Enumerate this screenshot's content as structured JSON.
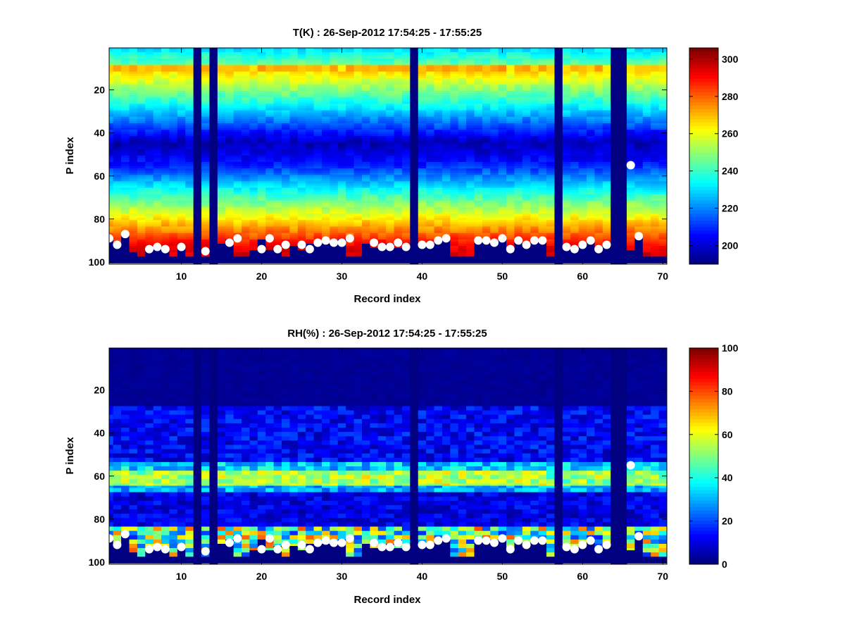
{
  "chart_data": [
    {
      "type": "heatmap",
      "title": "T(K) : 26-Sep-2012 17:54:25 - 17:55:25",
      "xlabel": "Record index",
      "ylabel": "P index",
      "xlim": [
        1,
        70.5
      ],
      "ylim": [
        0.5,
        101
      ],
      "y_reversed": true,
      "xticks": [
        10,
        20,
        30,
        40,
        50,
        60,
        70
      ],
      "yticks": [
        20,
        40,
        60,
        80,
        100
      ],
      "colorbar": {
        "min": 190,
        "max": 306,
        "ticks": [
          200,
          220,
          240,
          260,
          280,
          300
        ],
        "colormap": "jet"
      },
      "missing_records": [
        12,
        14,
        39,
        57,
        64,
        65
      ],
      "surface_pressure_index": [
        89,
        92,
        87,
        95,
        97,
        94,
        93,
        94,
        97,
        93,
        97,
        95,
        97,
        97,
        91,
        89,
        97,
        97,
        94,
        89,
        94,
        92,
        97,
        92,
        94,
        91,
        90,
        91,
        91,
        89,
        97,
        97,
        91,
        93,
        93,
        91,
        93,
        92,
        97,
        92,
        92,
        90,
        89,
        97,
        97,
        97,
        90,
        90,
        91,
        89,
        94,
        90,
        92,
        90,
        90,
        97,
        97,
        93,
        94,
        92,
        90,
        94,
        92,
        97,
        97,
        94,
        88,
        97,
        97,
        97
      ],
      "profile_description": "Warm near-surface layer (~290-300 K) decreasing with height to a cold minimum (~195-205 K) near P index 40-50, then warming again to ~270 K near P index 8-10.",
      "markers": [
        [
          1,
          89
        ],
        [
          2,
          92
        ],
        [
          3,
          87
        ],
        [
          6,
          94
        ],
        [
          7,
          93
        ],
        [
          8,
          94
        ],
        [
          10,
          93
        ],
        [
          13,
          95
        ],
        [
          16,
          91
        ],
        [
          17,
          89
        ],
        [
          20,
          94
        ],
        [
          21,
          89
        ],
        [
          22,
          94
        ],
        [
          23,
          92
        ],
        [
          25,
          92
        ],
        [
          26,
          94
        ],
        [
          27,
          91
        ],
        [
          28,
          90
        ],
        [
          29,
          91
        ],
        [
          30,
          91
        ],
        [
          31,
          89
        ],
        [
          34,
          91
        ],
        [
          35,
          93
        ],
        [
          36,
          93
        ],
        [
          37,
          91
        ],
        [
          38,
          93
        ],
        [
          40,
          92
        ],
        [
          41,
          92
        ],
        [
          42,
          90
        ],
        [
          43,
          89
        ],
        [
          47,
          90
        ],
        [
          48,
          90
        ],
        [
          49,
          91
        ],
        [
          50,
          89
        ],
        [
          51,
          94
        ],
        [
          52,
          90
        ],
        [
          53,
          92
        ],
        [
          54,
          90
        ],
        [
          55,
          90
        ],
        [
          58,
          93
        ],
        [
          59,
          94
        ],
        [
          60,
          92
        ],
        [
          61,
          90
        ],
        [
          62,
          94
        ],
        [
          63,
          92
        ],
        [
          66,
          55
        ],
        [
          67,
          88
        ]
      ]
    },
    {
      "type": "heatmap",
      "title": "RH(%) : 26-Sep-2012 17:54:25 - 17:55:25",
      "xlabel": "Record index",
      "ylabel": "P index",
      "xlim": [
        1,
        70.5
      ],
      "ylim": [
        0.5,
        101
      ],
      "y_reversed": true,
      "xticks": [
        10,
        20,
        30,
        40,
        50,
        60,
        70
      ],
      "yticks": [
        20,
        40,
        60,
        80,
        100
      ],
      "colorbar": {
        "min": 0,
        "max": 100,
        "ticks": [
          0,
          20,
          40,
          60,
          80,
          100
        ],
        "colormap": "jet"
      },
      "missing_records": [
        12,
        14,
        39,
        57,
        64,
        65
      ],
      "profile_description": "Near-zero humidity above P index 30; moist band (~50-65%) centered near P index 60-63; low values 70-80; patchy moist/saturated values near the surface (P index 85-98).",
      "markers": [
        [
          1,
          89
        ],
        [
          2,
          92
        ],
        [
          3,
          87
        ],
        [
          6,
          94
        ],
        [
          7,
          93
        ],
        [
          8,
          94
        ],
        [
          10,
          93
        ],
        [
          13,
          95
        ],
        [
          16,
          91
        ],
        [
          17,
          89
        ],
        [
          20,
          94
        ],
        [
          21,
          89
        ],
        [
          22,
          94
        ],
        [
          23,
          92
        ],
        [
          25,
          92
        ],
        [
          26,
          94
        ],
        [
          27,
          91
        ],
        [
          28,
          90
        ],
        [
          29,
          91
        ],
        [
          30,
          91
        ],
        [
          31,
          89
        ],
        [
          34,
          91
        ],
        [
          35,
          93
        ],
        [
          36,
          93
        ],
        [
          37,
          91
        ],
        [
          38,
          93
        ],
        [
          40,
          92
        ],
        [
          41,
          92
        ],
        [
          42,
          90
        ],
        [
          43,
          89
        ],
        [
          47,
          90
        ],
        [
          48,
          90
        ],
        [
          49,
          91
        ],
        [
          50,
          89
        ],
        [
          51,
          94
        ],
        [
          52,
          90
        ],
        [
          53,
          92
        ],
        [
          54,
          90
        ],
        [
          55,
          90
        ],
        [
          58,
          93
        ],
        [
          59,
          94
        ],
        [
          60,
          92
        ],
        [
          61,
          90
        ],
        [
          62,
          94
        ],
        [
          63,
          92
        ],
        [
          66,
          55
        ],
        [
          67,
          88
        ]
      ]
    }
  ]
}
